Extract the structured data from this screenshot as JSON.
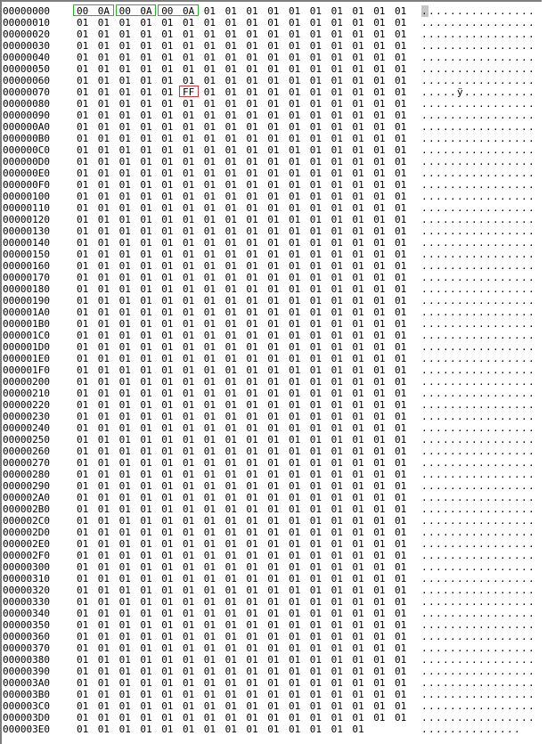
{
  "colors": {
    "background": "#ffffff",
    "text": "#000000",
    "border": "#7e7e7e",
    "green_box": "#2eb02e",
    "red_box": "#b64040",
    "ascii_selection": "#c6c6c6"
  },
  "editor": {
    "bytes_per_row": 16,
    "green_boxes": [
      {
        "row": 0,
        "start": 0,
        "end": 1
      },
      {
        "row": 0,
        "start": 2,
        "end": 3
      },
      {
        "row": 0,
        "start": 4,
        "end": 5
      }
    ],
    "red_boxes": [
      {
        "row": 7,
        "start": 5,
        "end": 5
      }
    ],
    "ascii_selection": {
      "row": 0,
      "index": 0
    },
    "rows": [
      {
        "address": "00000000",
        "bytes": "00 0A 00 0A 00 0A 01 01 01 01 01 01 01 01 01 01",
        "ascii": "................"
      },
      {
        "address": "00000010",
        "bytes": "01 01 01 01 01 01 01 01 01 01 01 01 01 01 01 01",
        "ascii": "................"
      },
      {
        "address": "00000020",
        "bytes": "01 01 01 01 01 01 01 01 01 01 01 01 01 01 01 01",
        "ascii": "................"
      },
      {
        "address": "00000030",
        "bytes": "01 01 01 01 01 01 01 01 01 01 01 01 01 01 01 01",
        "ascii": "................"
      },
      {
        "address": "00000040",
        "bytes": "01 01 01 01 01 01 01 01 01 01 01 01 01 01 01 01",
        "ascii": "................"
      },
      {
        "address": "00000050",
        "bytes": "01 01 01 01 01 01 01 01 01 01 01 01 01 01 01 01",
        "ascii": "................"
      },
      {
        "address": "00000060",
        "bytes": "01 01 01 01 01 01 01 01 01 01 01 01 01 01 01 01",
        "ascii": "................"
      },
      {
        "address": "00000070",
        "bytes": "01 01 01 01 01 FF 01 01 01 01 01 01 01 01 01 01",
        "ascii": ".....ÿ.........."
      },
      {
        "address": "00000080",
        "bytes": "01 01 01 01 01 01 01 01 01 01 01 01 01 01 01 01",
        "ascii": "................"
      },
      {
        "address": "00000090",
        "bytes": "01 01 01 01 01 01 01 01 01 01 01 01 01 01 01 01",
        "ascii": "................"
      },
      {
        "address": "000000A0",
        "bytes": "01 01 01 01 01 01 01 01 01 01 01 01 01 01 01 01",
        "ascii": "................"
      },
      {
        "address": "000000B0",
        "bytes": "01 01 01 01 01 01 01 01 01 01 01 01 01 01 01 01",
        "ascii": "................"
      },
      {
        "address": "000000C0",
        "bytes": "01 01 01 01 01 01 01 01 01 01 01 01 01 01 01 01",
        "ascii": "................"
      },
      {
        "address": "000000D0",
        "bytes": "01 01 01 01 01 01 01 01 01 01 01 01 01 01 01 01",
        "ascii": "................"
      },
      {
        "address": "000000E0",
        "bytes": "01 01 01 01 01 01 01 01 01 01 01 01 01 01 01 01",
        "ascii": "................"
      },
      {
        "address": "000000F0",
        "bytes": "01 01 01 01 01 01 01 01 01 01 01 01 01 01 01 01",
        "ascii": "................"
      },
      {
        "address": "00000100",
        "bytes": "01 01 01 01 01 01 01 01 01 01 01 01 01 01 01 01",
        "ascii": "................"
      },
      {
        "address": "00000110",
        "bytes": "01 01 01 01 01 01 01 01 01 01 01 01 01 01 01 01",
        "ascii": "................"
      },
      {
        "address": "00000120",
        "bytes": "01 01 01 01 01 01 01 01 01 01 01 01 01 01 01 01",
        "ascii": "................"
      },
      {
        "address": "00000130",
        "bytes": "01 01 01 01 01 01 01 01 01 01 01 01 01 01 01 01",
        "ascii": "................"
      },
      {
        "address": "00000140",
        "bytes": "01 01 01 01 01 01 01 01 01 01 01 01 01 01 01 01",
        "ascii": "................"
      },
      {
        "address": "00000150",
        "bytes": "01 01 01 01 01 01 01 01 01 01 01 01 01 01 01 01",
        "ascii": "................"
      },
      {
        "address": "00000160",
        "bytes": "01 01 01 01 01 01 01 01 01 01 01 01 01 01 01 01",
        "ascii": "................"
      },
      {
        "address": "00000170",
        "bytes": "01 01 01 01 01 01 01 01 01 01 01 01 01 01 01 01",
        "ascii": "................"
      },
      {
        "address": "00000180",
        "bytes": "01 01 01 01 01 01 01 01 01 01 01 01 01 01 01 01",
        "ascii": "................"
      },
      {
        "address": "00000190",
        "bytes": "01 01 01 01 01 01 01 01 01 01 01 01 01 01 01 01",
        "ascii": "................"
      },
      {
        "address": "000001A0",
        "bytes": "01 01 01 01 01 01 01 01 01 01 01 01 01 01 01 01",
        "ascii": "................"
      },
      {
        "address": "000001B0",
        "bytes": "01 01 01 01 01 01 01 01 01 01 01 01 01 01 01 01",
        "ascii": "................"
      },
      {
        "address": "000001C0",
        "bytes": "01 01 01 01 01 01 01 01 01 01 01 01 01 01 01 01",
        "ascii": "................"
      },
      {
        "address": "000001D0",
        "bytes": "01 01 01 01 01 01 01 01 01 01 01 01 01 01 01 01",
        "ascii": "................"
      },
      {
        "address": "000001E0",
        "bytes": "01 01 01 01 01 01 01 01 01 01 01 01 01 01 01 01",
        "ascii": "................"
      },
      {
        "address": "000001F0",
        "bytes": "01 01 01 01 01 01 01 01 01 01 01 01 01 01 01 01",
        "ascii": "................"
      },
      {
        "address": "00000200",
        "bytes": "01 01 01 01 01 01 01 01 01 01 01 01 01 01 01 01",
        "ascii": "................"
      },
      {
        "address": "00000210",
        "bytes": "01 01 01 01 01 01 01 01 01 01 01 01 01 01 01 01",
        "ascii": "................"
      },
      {
        "address": "00000220",
        "bytes": "01 01 01 01 01 01 01 01 01 01 01 01 01 01 01 01",
        "ascii": "................"
      },
      {
        "address": "00000230",
        "bytes": "01 01 01 01 01 01 01 01 01 01 01 01 01 01 01 01",
        "ascii": "................"
      },
      {
        "address": "00000240",
        "bytes": "01 01 01 01 01 01 01 01 01 01 01 01 01 01 01 01",
        "ascii": "................"
      },
      {
        "address": "00000250",
        "bytes": "01 01 01 01 01 01 01 01 01 01 01 01 01 01 01 01",
        "ascii": "................"
      },
      {
        "address": "00000260",
        "bytes": "01 01 01 01 01 01 01 01 01 01 01 01 01 01 01 01",
        "ascii": "................"
      },
      {
        "address": "00000270",
        "bytes": "01 01 01 01 01 01 01 01 01 01 01 01 01 01 01 01",
        "ascii": "................"
      },
      {
        "address": "00000280",
        "bytes": "01 01 01 01 01 01 01 01 01 01 01 01 01 01 01 01",
        "ascii": "................"
      },
      {
        "address": "00000290",
        "bytes": "01 01 01 01 01 01 01 01 01 01 01 01 01 01 01 01",
        "ascii": "................"
      },
      {
        "address": "000002A0",
        "bytes": "01 01 01 01 01 01 01 01 01 01 01 01 01 01 01 01",
        "ascii": "................"
      },
      {
        "address": "000002B0",
        "bytes": "01 01 01 01 01 01 01 01 01 01 01 01 01 01 01 01",
        "ascii": "................"
      },
      {
        "address": "000002C0",
        "bytes": "01 01 01 01 01 01 01 01 01 01 01 01 01 01 01 01",
        "ascii": "................"
      },
      {
        "address": "000002D0",
        "bytes": "01 01 01 01 01 01 01 01 01 01 01 01 01 01 01 01",
        "ascii": "................"
      },
      {
        "address": "000002E0",
        "bytes": "01 01 01 01 01 01 01 01 01 01 01 01 01 01 01 01",
        "ascii": "................"
      },
      {
        "address": "000002F0",
        "bytes": "01 01 01 01 01 01 01 01 01 01 01 01 01 01 01 01",
        "ascii": "................"
      },
      {
        "address": "00000300",
        "bytes": "01 01 01 01 01 01 01 01 01 01 01 01 01 01 01 01",
        "ascii": "................"
      },
      {
        "address": "00000310",
        "bytes": "01 01 01 01 01 01 01 01 01 01 01 01 01 01 01 01",
        "ascii": "................"
      },
      {
        "address": "00000320",
        "bytes": "01 01 01 01 01 01 01 01 01 01 01 01 01 01 01 01",
        "ascii": "................"
      },
      {
        "address": "00000330",
        "bytes": "01 01 01 01 01 01 01 01 01 01 01 01 01 01 01 01",
        "ascii": "................"
      },
      {
        "address": "00000340",
        "bytes": "01 01 01 01 01 01 01 01 01 01 01 01 01 01 01 01",
        "ascii": "................"
      },
      {
        "address": "00000350",
        "bytes": "01 01 01 01 01 01 01 01 01 01 01 01 01 01 01 01",
        "ascii": "................"
      },
      {
        "address": "00000360",
        "bytes": "01 01 01 01 01 01 01 01 01 01 01 01 01 01 01 01",
        "ascii": "................"
      },
      {
        "address": "00000370",
        "bytes": "01 01 01 01 01 01 01 01 01 01 01 01 01 01 01 01",
        "ascii": "................"
      },
      {
        "address": "00000380",
        "bytes": "01 01 01 01 01 01 01 01 01 01 01 01 01 01 01 01",
        "ascii": "................"
      },
      {
        "address": "00000390",
        "bytes": "01 01 01 01 01 01 01 01 01 01 01 01 01 01 01 01",
        "ascii": "................"
      },
      {
        "address": "000003A0",
        "bytes": "01 01 01 01 01 01 01 01 01 01 01 01 01 01 01 01",
        "ascii": "................"
      },
      {
        "address": "000003B0",
        "bytes": "01 01 01 01 01 01 01 01 01 01 01 01 01 01 01 01",
        "ascii": "................"
      },
      {
        "address": "000003C0",
        "bytes": "01 01 01 01 01 01 01 01 01 01 01 01 01 01 01 01",
        "ascii": "................"
      },
      {
        "address": "000003D0",
        "bytes": "01 01 01 01 01 01 01 01 01 01 01 01 01 01 01 01",
        "ascii": "................"
      },
      {
        "address": "000003E0",
        "bytes": "01 01 01 01 01 01 01 01 01 01 01 01 01 01",
        "ascii": ".............."
      }
    ]
  }
}
